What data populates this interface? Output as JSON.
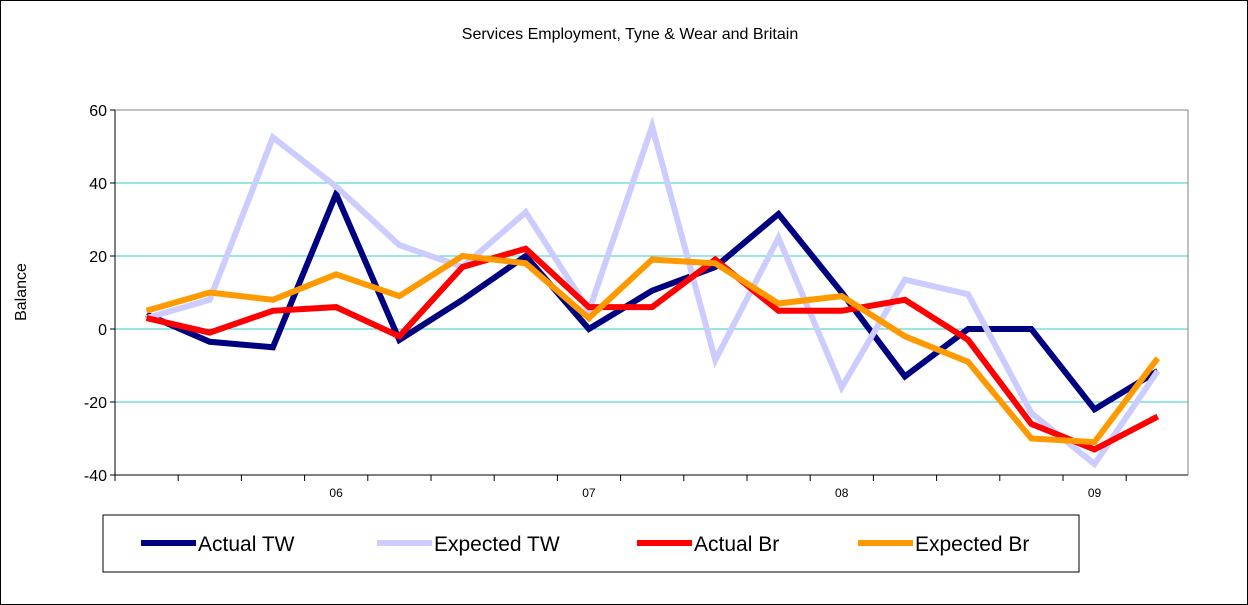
{
  "chart_data": {
    "type": "line",
    "title": "Services Employment, Tyne & Wear and Britain",
    "xlabel": "",
    "ylabel": "Balance",
    "ylim": [
      -40,
      60
    ],
    "yticks": [
      60,
      40,
      20,
      0,
      -20,
      -40
    ],
    "x_tick_labels": [
      "06",
      "07",
      "08",
      "09"
    ],
    "gridlines": "horizontal",
    "legend_position": "bottom",
    "series": [
      {
        "name": "Actual TW",
        "color": "#000080",
        "values": [
          4,
          -3.5,
          -5,
          37,
          -3,
          8,
          20,
          0,
          10.5,
          17,
          31.5,
          10,
          -13,
          0,
          0,
          -22,
          -11.5
        ]
      },
      {
        "name": "Expected TW",
        "color": "#ccccff",
        "values": [
          3,
          8,
          52.5,
          39,
          23,
          17,
          32,
          5,
          55.5,
          -8.5,
          25,
          -16,
          13.5,
          9.5,
          -23,
          -37,
          -11.5
        ]
      },
      {
        "name": "Actual Br",
        "color": "#ff0000",
        "values": [
          3,
          -1,
          5,
          6,
          -2,
          17,
          22,
          6,
          6,
          19,
          5,
          5,
          8,
          -3,
          -26,
          -33,
          -24
        ]
      },
      {
        "name": "Expected Br",
        "color": "#ff9900",
        "values": [
          5,
          10,
          8,
          15,
          9,
          20,
          18,
          3,
          19,
          18,
          7,
          9,
          -2,
          -9,
          -30,
          -31,
          -8
        ]
      }
    ]
  }
}
